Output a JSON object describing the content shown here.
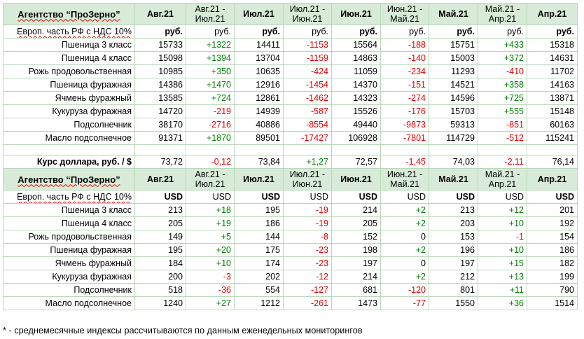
{
  "periods": [
    "Авг.21",
    "Авг.21 -\nИюл.21",
    "Июл.21",
    "Июл.21 -\nИюн.21",
    "Июн.21",
    "Июн.21 -\nМай.21",
    "Май.21",
    "Май.21 -\nАпр.21",
    "Апр.21"
  ],
  "rub": {
    "org": "Агентство “ПроЗерно”",
    "unit_label": "Европ. часть РФ с НДС 10%",
    "units": [
      "руб.",
      "руб.",
      "руб.",
      "руб.",
      "руб.",
      "руб.",
      "руб.",
      "руб.",
      "руб."
    ],
    "rows": [
      {
        "name": "Пшеница 3 класс",
        "vals": [
          "15733",
          "+1322",
          "14411",
          "-1153",
          "15564",
          "-188",
          "15751",
          "+433",
          "15318"
        ]
      },
      {
        "name": "Пшеница 4 класс",
        "vals": [
          "15098",
          "+1394",
          "13704",
          "-1159",
          "14863",
          "-140",
          "15003",
          "+372",
          "14631"
        ]
      },
      {
        "name": "Рожь продовольственная",
        "vals": [
          "10985",
          "+350",
          "10635",
          "-424",
          "11059",
          "-234",
          "11293",
          "-410",
          "11702"
        ]
      },
      {
        "name": "Пшеница фуражная",
        "vals": [
          "14386",
          "+1470",
          "12916",
          "-1454",
          "14370",
          "-151",
          "14521",
          "+358",
          "14163"
        ]
      },
      {
        "name": "Ячмень фуражный",
        "vals": [
          "13585",
          "+724",
          "12861",
          "-1462",
          "14323",
          "-274",
          "14596",
          "+725",
          "13871"
        ]
      },
      {
        "name": "Кукуруза фуражная",
        "vals": [
          "14720",
          "-219",
          "14939",
          "-587",
          "15526",
          "-176",
          "15703",
          "+555",
          "15148"
        ]
      },
      {
        "name": "Подсолнечник",
        "vals": [
          "38170",
          "-2716",
          "40886",
          "-8554",
          "49440",
          "-9873",
          "59313",
          "-851",
          "60163"
        ]
      },
      {
        "name": "Масло подсолнечное",
        "vals": [
          "91371",
          "+1870",
          "89501",
          "-17427",
          "106928",
          "-7801",
          "114729",
          "-512",
          "115241"
        ]
      }
    ]
  },
  "rate": {
    "name": "Курс доллара, руб. / $",
    "vals": [
      "73,72",
      "-0,12",
      "73,84",
      "+1,27",
      "72,57",
      "-1,45",
      "74,03",
      "-2,11",
      "76,14"
    ]
  },
  "usd": {
    "org": "Агентство “ПроЗерно”",
    "unit_label": "Европ. часть РФ с НДС 10%",
    "units": [
      "USD",
      "USD",
      "USD",
      "USD",
      "USD",
      "USD",
      "USD",
      "USD",
      "USD"
    ],
    "rows": [
      {
        "name": "Пшеница 3 класс",
        "vals": [
          "213",
          "+18",
          "195",
          "-19",
          "214",
          "+2",
          "213",
          "+12",
          "201"
        ]
      },
      {
        "name": "Пшеница 4 класс",
        "vals": [
          "205",
          "+19",
          "186",
          "-19",
          "205",
          "+2",
          "203",
          "+10",
          "192"
        ]
      },
      {
        "name": "Рожь продовольственная",
        "vals": [
          "149",
          "+5",
          "144",
          "-8",
          "152",
          "0",
          "153",
          "-1",
          "154"
        ]
      },
      {
        "name": "Пшеница фуражная",
        "vals": [
          "195",
          "+20",
          "175",
          "-23",
          "198",
          "+2",
          "196",
          "+10",
          "186"
        ]
      },
      {
        "name": "Ячмень фуражный",
        "vals": [
          "184",
          "+10",
          "174",
          "-23",
          "197",
          "0",
          "197",
          "+15",
          "182"
        ]
      },
      {
        "name": "Кукуруза фуражная",
        "vals": [
          "200",
          "-3",
          "202",
          "-12",
          "214",
          "+2",
          "212",
          "+13",
          "199"
        ]
      },
      {
        "name": "Подсолнечник",
        "vals": [
          "518",
          "-36",
          "554",
          "-127",
          "681",
          "-120",
          "801",
          "+11",
          "790"
        ]
      },
      {
        "name": "Масло подсолнечное",
        "vals": [
          "1240",
          "+27",
          "1212",
          "-261",
          "1473",
          "-77",
          "1550",
          "+36",
          "1514"
        ]
      }
    ]
  },
  "footnote": "* - среднемесячные индексы рассчитываются по данным еженедельных мониторингов",
  "colors": {
    "positive": "#008000",
    "negative": "#e60000",
    "header_bg": "#d8ebd8",
    "border": "#b9d7b9"
  }
}
